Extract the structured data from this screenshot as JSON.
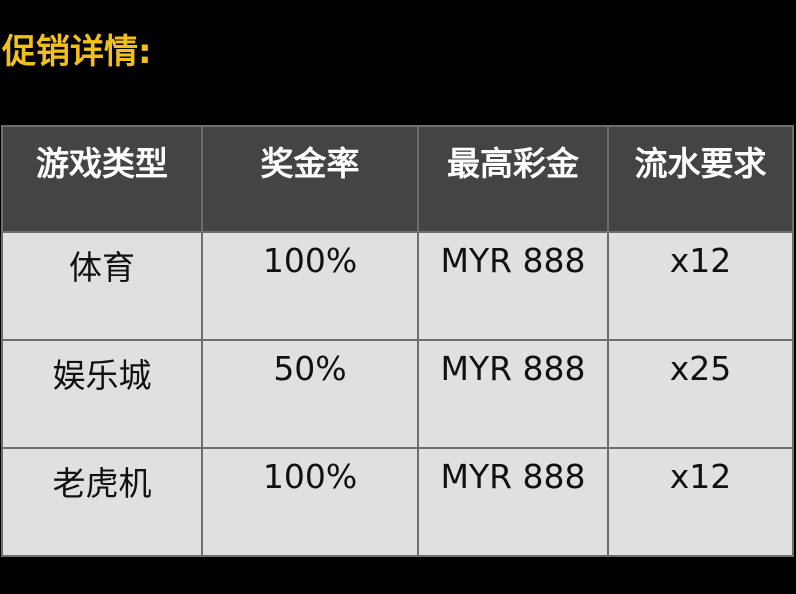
{
  "title": "促销详情:",
  "colors": {
    "title": "#f2c01c",
    "header_bg": "#444444",
    "cell_bg": "#e0e0e0"
  },
  "table": {
    "headers": [
      "游戏类型",
      "奖金率",
      "最高彩金",
      "流水要求"
    ],
    "rows": [
      [
        "体育",
        "100%",
        "MYR 888",
        "x12"
      ],
      [
        "娱乐城",
        "50%",
        "MYR 888",
        "x25"
      ],
      [
        "老虎机",
        "100%",
        "MYR 888",
        "x12"
      ]
    ]
  }
}
